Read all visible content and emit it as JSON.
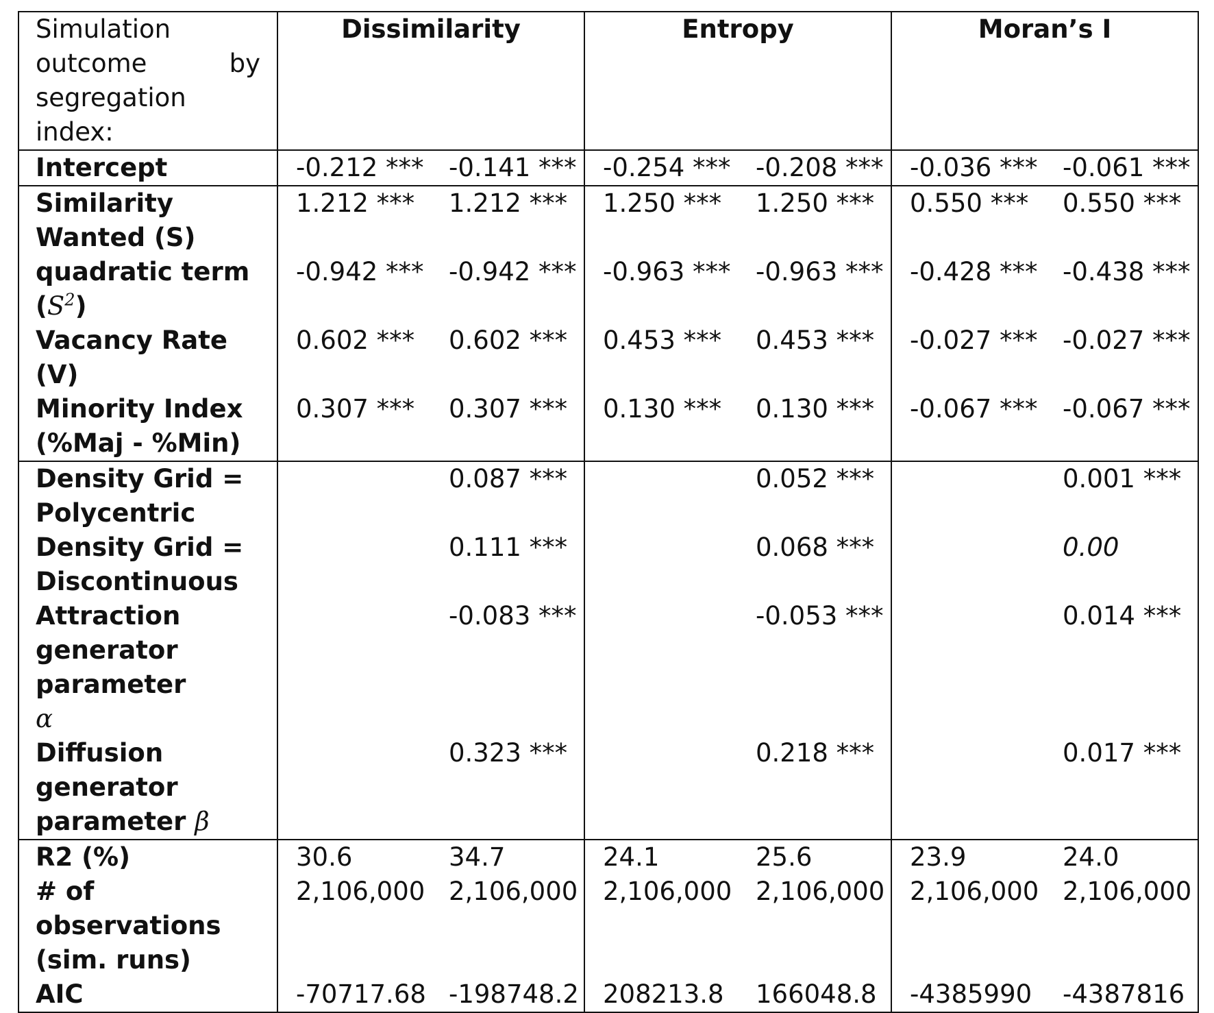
{
  "header": {
    "label": "Simulation outcome by segregation index:",
    "groups": [
      "Dissimilarity",
      "Entropy",
      "Moran’s I"
    ]
  },
  "rows": [
    {
      "label": "Intercept",
      "values": [
        "-0.212 ***",
        "-0.141 ***",
        "-0.254 ***",
        "-0.208 ***",
        "-0.036 ***",
        "-0.061 ***"
      ]
    },
    {
      "label": "Similarity Wanted (S)",
      "values": [
        "1.212 ***",
        "1.212 ***",
        "1.250 ***",
        "1.250 ***",
        "0.550 ***",
        "0.550 ***"
      ]
    },
    {
      "label_text": "quadratic term (",
      "label_math": "S",
      "label_sup": "2",
      "label_tail": ")",
      "values": [
        "-0.942 ***",
        "-0.942 ***",
        "-0.963 ***",
        "-0.963 ***",
        "-0.428 ***",
        "-0.438 ***"
      ]
    },
    {
      "label": "Vacancy Rate (V)",
      "values": [
        "0.602 ***",
        "0.602 ***",
        "0.453 ***",
        "0.453 ***",
        "-0.027 ***",
        "-0.027 ***"
      ]
    },
    {
      "label": "Minority Index (%Maj - %Min)",
      "values": [
        "0.307 ***",
        "0.307 ***",
        "0.130 ***",
        "0.130 ***",
        "-0.067 ***",
        "-0.067 ***"
      ]
    },
    {
      "label": "Density Grid = Polycentric",
      "values": [
        "",
        "0.087 ***",
        "",
        "0.052 ***",
        "",
        "0.001 ***"
      ]
    },
    {
      "label": "Density Grid = Discontinuous",
      "values": [
        "",
        "0.111 ***",
        "",
        "0.068 ***",
        "",
        "0.00"
      ]
    },
    {
      "label": "Attraction generator parameter",
      "label_math": "α",
      "values": [
        "",
        "-0.083 ***",
        "",
        "-0.053 ***",
        "",
        "0.014 ***"
      ]
    },
    {
      "label": "Diffusion generator parameter",
      "label_math": "β",
      "values": [
        "",
        "0.323 ***",
        "",
        "0.218 ***",
        "",
        "0.017 ***"
      ]
    },
    {
      "label": "R2 (%)",
      "values": [
        "30.6",
        "34.7",
        "24.1",
        "25.6",
        "23.9",
        "24.0"
      ]
    },
    {
      "label": "# of observations (sim. runs)",
      "values": [
        "2,106,000",
        "2,106,000",
        "2,106,000",
        "2,106,000",
        "2,106,000",
        "2,106,000"
      ]
    },
    {
      "label": "AIC",
      "values": [
        "-70717.68",
        "-198748.2",
        "208213.8",
        "166048.8",
        "-4385990",
        "-4387816"
      ]
    }
  ]
}
